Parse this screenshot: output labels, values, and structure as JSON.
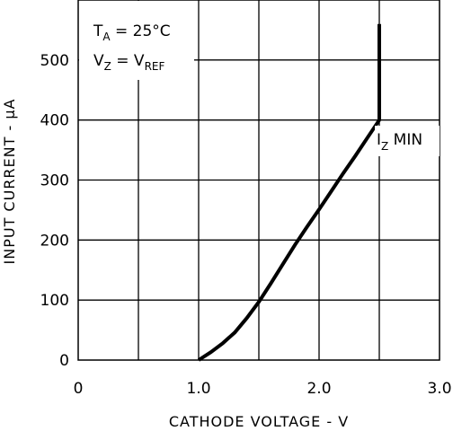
{
  "chart_data": {
    "type": "line",
    "xlabel": "CATHODE VOLTAGE - V",
    "ylabel": "INPUT CURRENT - µA",
    "xlim": [
      0,
      3.0
    ],
    "ylim": [
      0,
      600
    ],
    "x_ticks": [
      "0",
      "1.0",
      "2.0",
      "3.0"
    ],
    "y_ticks": [
      "0",
      "100",
      "200",
      "300",
      "400",
      "500"
    ],
    "grid": true,
    "series": [
      {
        "x": [
          1.0,
          1.1,
          1.2,
          1.3,
          1.4,
          1.5,
          1.6,
          1.7,
          1.8,
          1.9,
          2.0,
          2.1,
          2.2,
          2.3,
          2.4,
          2.5,
          2.5
        ],
        "y": [
          0,
          13,
          28,
          46,
          70,
          97,
          128,
          160,
          192,
          222,
          251,
          281,
          311,
          340,
          370,
          400,
          560
        ]
      }
    ],
    "annotations": {
      "conditions": [
        {
          "main": "T",
          "sub": "A",
          "rest": " = 25°C"
        },
        {
          "main": "V",
          "sub": "Z",
          "rest": " = V",
          "sub2": "REF"
        }
      ],
      "label": {
        "main": "I",
        "sub": "Z",
        "rest": " MIN"
      }
    }
  }
}
